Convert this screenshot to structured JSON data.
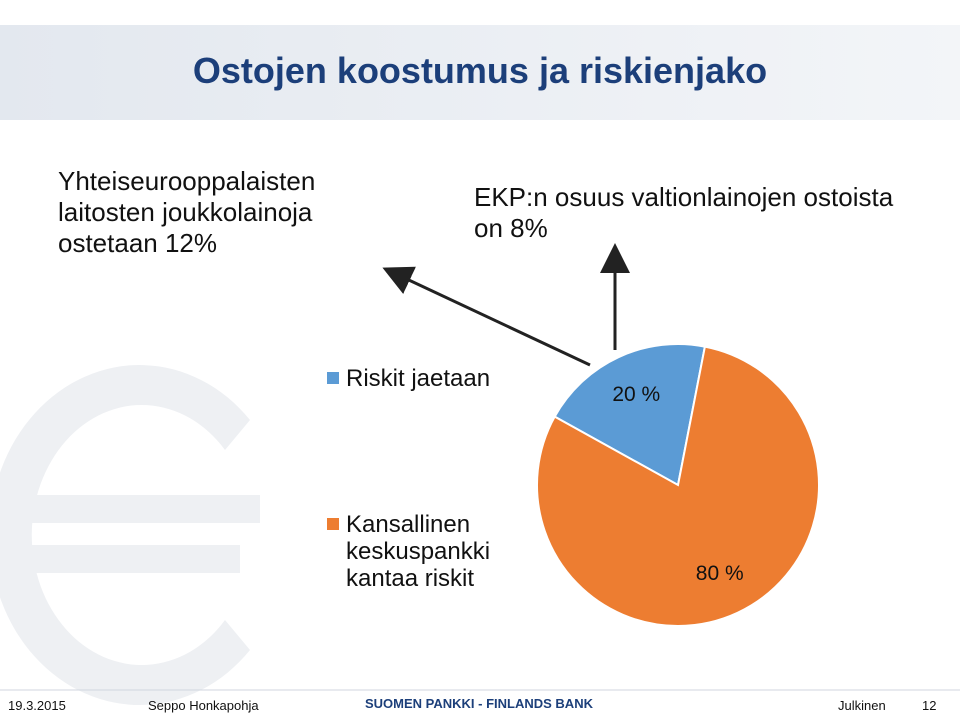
{
  "chart_data": {
    "type": "pie",
    "title": "Ostojen koostumus ja riskienjako",
    "categories": [
      "Riskit jaetaan",
      "Kansallinen keskuspankki kantaa riskit"
    ],
    "values": [
      20,
      80
    ],
    "value_labels": [
      "20 %",
      "80 %"
    ],
    "colors": [
      "#5b9bd5",
      "#ed7d31"
    ],
    "annotations": [
      "Yhteiseurooppalaisten laitosten joukkolainoja ostetaan 12%",
      "EKP:n osuus valtionlainojen ostoista on 8%"
    ]
  },
  "footer": {
    "date": "19.3.2015",
    "author": "Seppo Honkapohja",
    "organization": "SUOMEN PANKKI - FINLANDS BANK",
    "classification": "Julkinen",
    "page": "12"
  }
}
